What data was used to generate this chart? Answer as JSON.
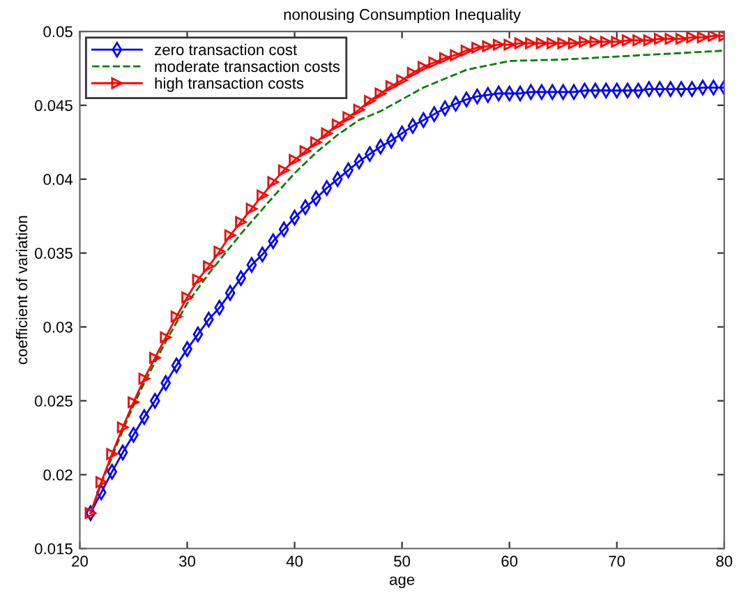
{
  "chart_data": {
    "type": "line",
    "title": "nonousing Consumption Inequality",
    "xlabel": "age",
    "ylabel": "coefficient of variation",
    "xlim": [
      20,
      80
    ],
    "xticks": [
      20,
      30,
      40,
      50,
      60,
      70,
      80
    ],
    "ylim": [
      0.015,
      0.05
    ],
    "yticks": [
      0.015,
      0.02,
      0.025,
      0.03,
      0.035,
      0.04,
      0.045,
      0.05
    ],
    "grid": false,
    "legend": "top left",
    "series": [
      {
        "name": "zero transaction cost",
        "color": "#0000ff",
        "marker": "diamond",
        "line_style": "solid",
        "x": [
          21,
          22,
          23,
          24,
          25,
          26,
          27,
          28,
          29,
          30,
          31,
          32,
          33,
          34,
          35,
          36,
          37,
          38,
          39,
          40,
          41,
          42,
          43,
          44,
          45,
          46,
          47,
          48,
          49,
          50,
          51,
          52,
          53,
          54,
          55,
          56,
          57,
          58,
          59,
          60,
          61,
          62,
          63,
          64,
          65,
          66,
          67,
          68,
          69,
          70,
          71,
          72,
          73,
          74,
          75,
          76,
          77,
          78,
          79,
          80
        ],
        "values": [
          0.0174,
          0.0188,
          0.0202,
          0.0215,
          0.0227,
          0.0239,
          0.025,
          0.0262,
          0.0274,
          0.0285,
          0.0295,
          0.0305,
          0.0313,
          0.0323,
          0.0333,
          0.0342,
          0.0349,
          0.0358,
          0.0366,
          0.0374,
          0.0381,
          0.0387,
          0.0394,
          0.04,
          0.0406,
          0.0412,
          0.0417,
          0.0422,
          0.0426,
          0.0431,
          0.0436,
          0.044,
          0.0444,
          0.0448,
          0.0451,
          0.0454,
          0.0456,
          0.0457,
          0.0458,
          0.0458,
          0.0458,
          0.0459,
          0.0459,
          0.0459,
          0.0459,
          0.0459,
          0.046,
          0.046,
          0.046,
          0.046,
          0.046,
          0.046,
          0.0461,
          0.0461,
          0.0461,
          0.0461,
          0.0461,
          0.0462,
          0.0462,
          0.0462
        ]
      },
      {
        "name": "moderate transaction costs",
        "color": "#008000",
        "marker": "none",
        "line_style": "dashed",
        "x": [
          21,
          22,
          23,
          24,
          25,
          26,
          28,
          30,
          32,
          35,
          38,
          40,
          42,
          44,
          46,
          48,
          50,
          52,
          54,
          56,
          58,
          60,
          65,
          70,
          75,
          80
        ],
        "values": [
          0.0174,
          0.0194,
          0.0212,
          0.023,
          0.0247,
          0.0262,
          0.029,
          0.0316,
          0.0336,
          0.0363,
          0.0388,
          0.0404,
          0.0418,
          0.043,
          0.044,
          0.0446,
          0.0454,
          0.0462,
          0.0468,
          0.0474,
          0.0477,
          0.048,
          0.0481,
          0.0483,
          0.0485,
          0.0487
        ]
      },
      {
        "name": "high transaction costs",
        "color": "#ff0000",
        "marker": "triangle",
        "line_style": "solid",
        "x": [
          21,
          22,
          23,
          24,
          25,
          26,
          27,
          28,
          29,
          30,
          31,
          32,
          33,
          34,
          35,
          36,
          37,
          38,
          39,
          40,
          41,
          42,
          43,
          44,
          45,
          46,
          47,
          48,
          49,
          50,
          51,
          52,
          53,
          54,
          55,
          56,
          57,
          58,
          59,
          60,
          61,
          62,
          63,
          64,
          65,
          66,
          67,
          68,
          69,
          70,
          71,
          72,
          73,
          74,
          75,
          76,
          77,
          78,
          79,
          80
        ],
        "values": [
          0.0174,
          0.0195,
          0.0214,
          0.0232,
          0.0249,
          0.0265,
          0.0279,
          0.0293,
          0.0307,
          0.032,
          0.0332,
          0.0341,
          0.0351,
          0.0362,
          0.0371,
          0.038,
          0.0389,
          0.0398,
          0.0406,
          0.0413,
          0.0419,
          0.0425,
          0.0431,
          0.0437,
          0.0442,
          0.0447,
          0.0453,
          0.0458,
          0.0463,
          0.0467,
          0.0472,
          0.0476,
          0.0479,
          0.0482,
          0.0484,
          0.0487,
          0.0489,
          0.049,
          0.0491,
          0.0491,
          0.0492,
          0.0492,
          0.0492,
          0.0492,
          0.0492,
          0.0492,
          0.0493,
          0.0493,
          0.0493,
          0.0493,
          0.0494,
          0.0494,
          0.0494,
          0.0495,
          0.0495,
          0.0495,
          0.0496,
          0.0496,
          0.0497,
          0.0497
        ]
      }
    ]
  }
}
